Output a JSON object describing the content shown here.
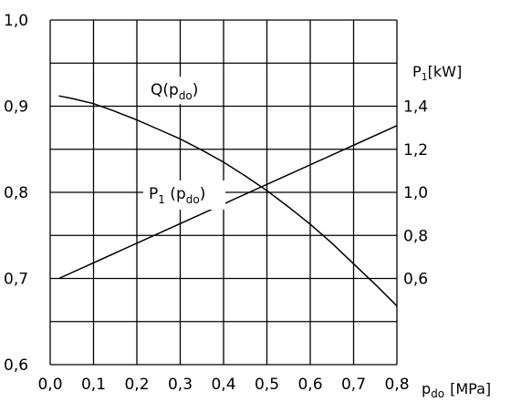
{
  "chart_data": {
    "type": "line",
    "title": "",
    "x": {
      "label_main": "p",
      "label_sub": "do",
      "label_unit": "[MPa]",
      "min": 0.0,
      "max": 0.8,
      "ticks": [
        0.0,
        0.1,
        0.2,
        0.3,
        0.4,
        0.5,
        0.6,
        0.7,
        0.8
      ],
      "tick_labels": [
        "0,0",
        "0,1",
        "0,2",
        "0,3",
        "0,4",
        "0,5",
        "0,6",
        "0,7",
        "0,8"
      ]
    },
    "y_left": {
      "min": 0.6,
      "max": 1.0,
      "tick_values": [
        0.6,
        0.7,
        0.8,
        0.9,
        1.0
      ],
      "tick_labels": [
        "0,6",
        "0,7",
        "0,8",
        "0,9",
        "1,0"
      ]
    },
    "y_right": {
      "label_main": "P",
      "label_sub": "1",
      "label_unit": "[kW]",
      "min": 0.2,
      "max": 1.8,
      "tick_values": [
        0.6,
        0.8,
        1.0,
        1.2,
        1.4
      ],
      "tick_labels": [
        "0,6",
        "0,8",
        "1,0",
        "1,2",
        "1,4"
      ]
    },
    "grid": true,
    "series": [
      {
        "name": "Q(p",
        "name_sub": "do",
        "name_close": ")",
        "axis": "left",
        "x": [
          0.02,
          0.05,
          0.1,
          0.15,
          0.2,
          0.25,
          0.3,
          0.35,
          0.4,
          0.45,
          0.5,
          0.55,
          0.6,
          0.65,
          0.7,
          0.75,
          0.8
        ],
        "y": [
          0.912,
          0.909,
          0.903,
          0.894,
          0.884,
          0.873,
          0.862,
          0.849,
          0.835,
          0.819,
          0.802,
          0.783,
          0.763,
          0.741,
          0.717,
          0.693,
          0.668
        ]
      },
      {
        "name": "P",
        "name_sub1": "1",
        "name_mid": " (p",
        "name_sub2": "do",
        "name_close": ")",
        "axis": "right",
        "x": [
          0.02,
          0.8
        ],
        "y": [
          0.6,
          1.31
        ]
      }
    ]
  }
}
